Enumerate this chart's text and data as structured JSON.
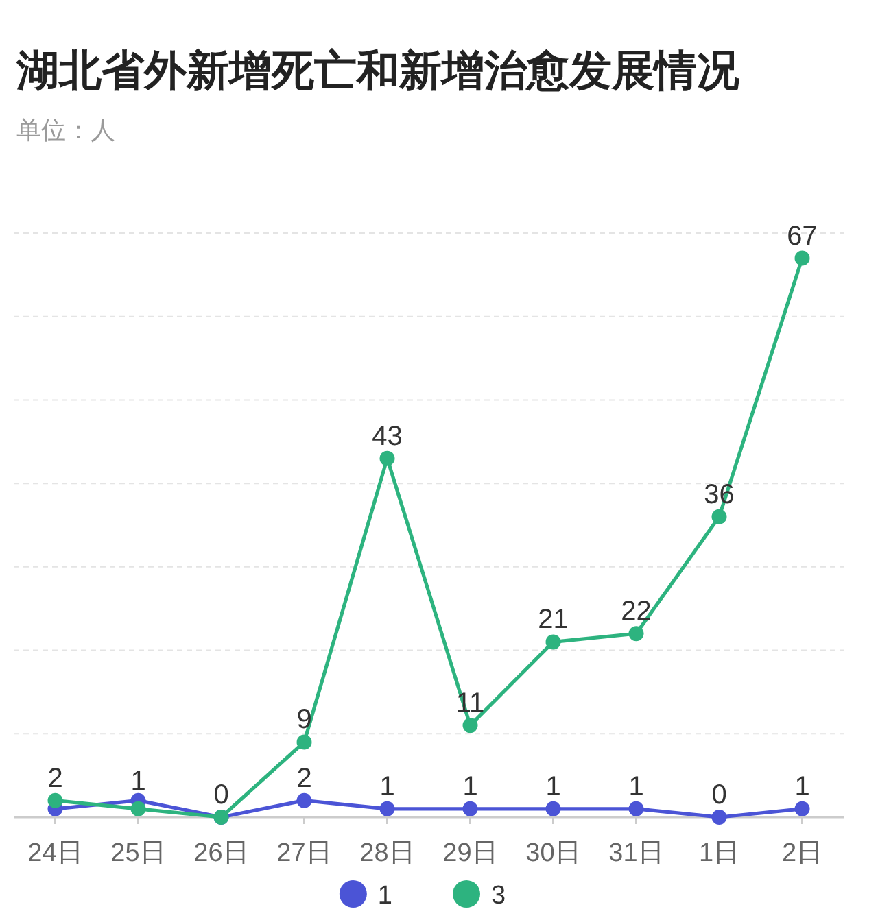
{
  "chart_data": {
    "type": "line",
    "title": "湖北省外新增死亡和新增治愈发展情况",
    "subtitle": "单位：人",
    "categories": [
      "24日",
      "25日",
      "26日",
      "27日",
      "28日",
      "29日",
      "30日",
      "31日",
      "1日",
      "2日"
    ],
    "series": [
      {
        "name": "1",
        "color": "#4b54d6",
        "values": [
          1,
          2,
          0,
          2,
          1,
          1,
          1,
          1,
          0,
          1
        ],
        "value_labels": [
          null,
          null,
          null,
          "2",
          "1",
          "1",
          "1",
          "1",
          "0",
          "1"
        ]
      },
      {
        "name": "3",
        "color": "#2db37f",
        "values": [
          2,
          1,
          0,
          9,
          43,
          11,
          21,
          22,
          36,
          67
        ],
        "value_labels": [
          "2",
          "1",
          "0",
          "9",
          "43",
          "11",
          "21",
          "22",
          "36",
          "67"
        ]
      }
    ],
    "ylim": [
      0,
      70
    ],
    "yticks": [
      {
        "value": 0,
        "label": null
      },
      {
        "value": 10,
        "label": null
      },
      {
        "value": 20,
        "label": null
      },
      {
        "value": 30,
        "label": null
      },
      {
        "value": 40,
        "label": null
      },
      {
        "value": 50,
        "label": null
      },
      {
        "value": 60,
        "label": null
      },
      {
        "value": 70,
        "label": null
      }
    ],
    "tick_labels": "x",
    "grid": "y",
    "legend": "bottom",
    "marker": "circle",
    "line_style": "solid"
  }
}
